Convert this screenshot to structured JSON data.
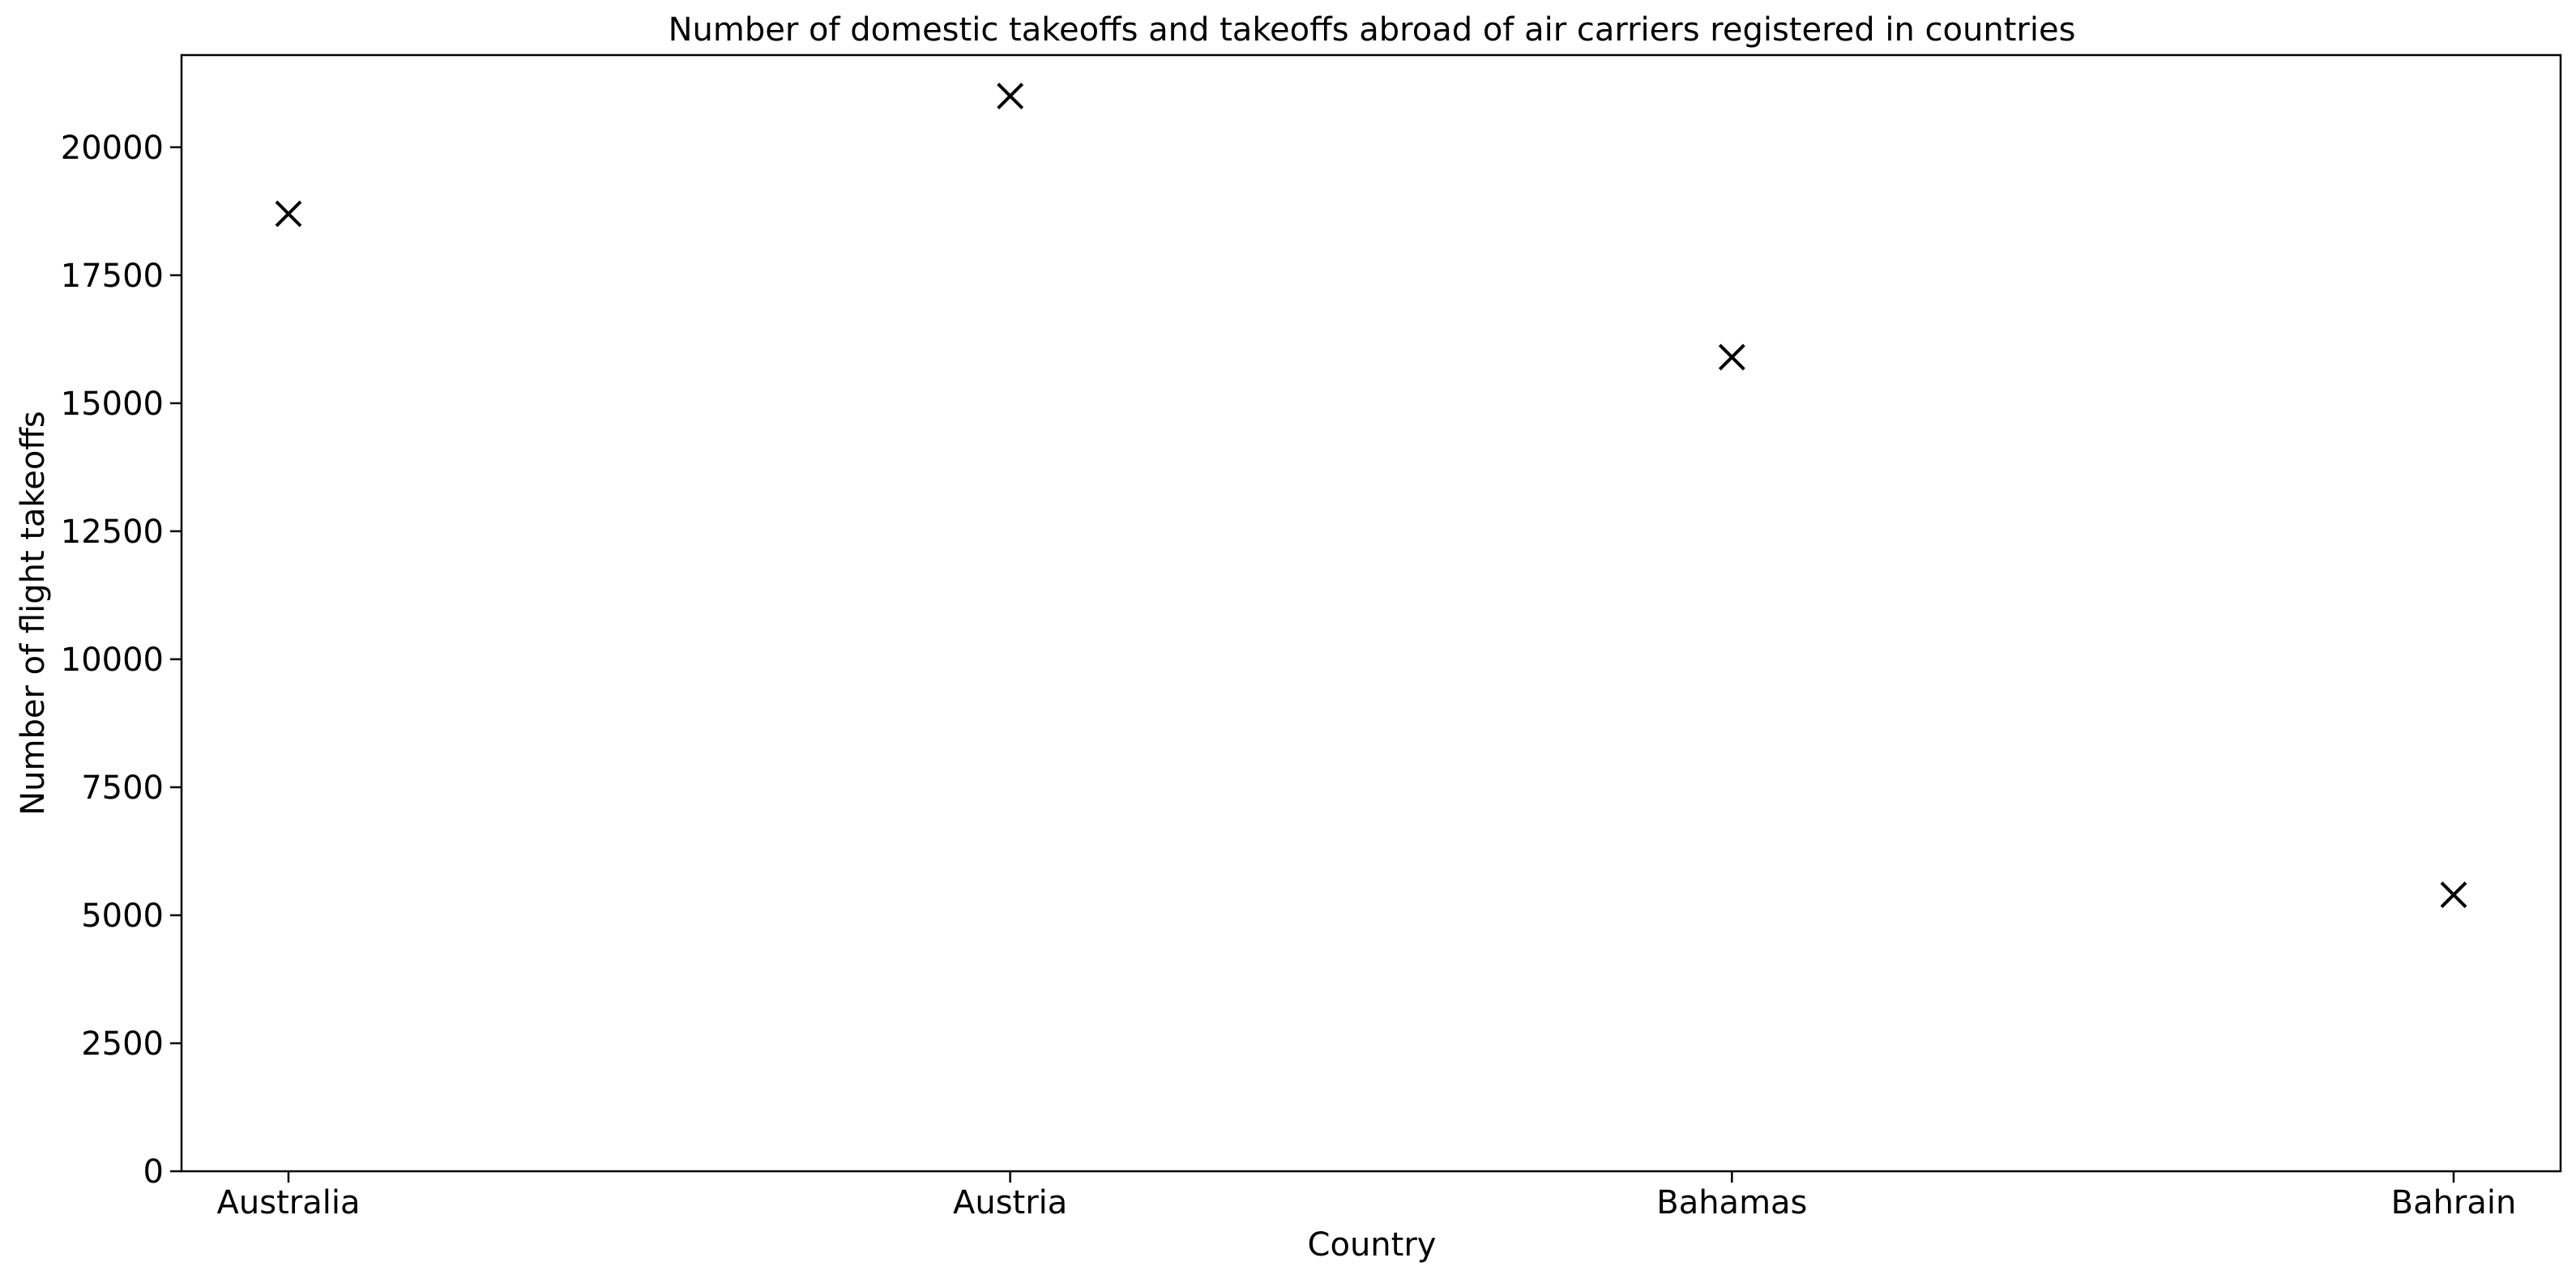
{
  "chart_data": {
    "type": "scatter",
    "title": "Number of domestic takeoffs and takeoffs abroad of air carriers registered in countries",
    "xlabel": "Country",
    "ylabel": "Number of flight takeoffs",
    "categories": [
      "Australia",
      "Austria",
      "Bahamas",
      "Bahrain"
    ],
    "values": [
      18700,
      21000,
      15900,
      5400
    ],
    "ylim": [
      0,
      21800
    ],
    "yticks": [
      0,
      2500,
      5000,
      7500,
      10000,
      12500,
      15000,
      17500,
      20000
    ],
    "marker": "x",
    "marker_color": "#000000",
    "grid": false,
    "legend": "none"
  }
}
